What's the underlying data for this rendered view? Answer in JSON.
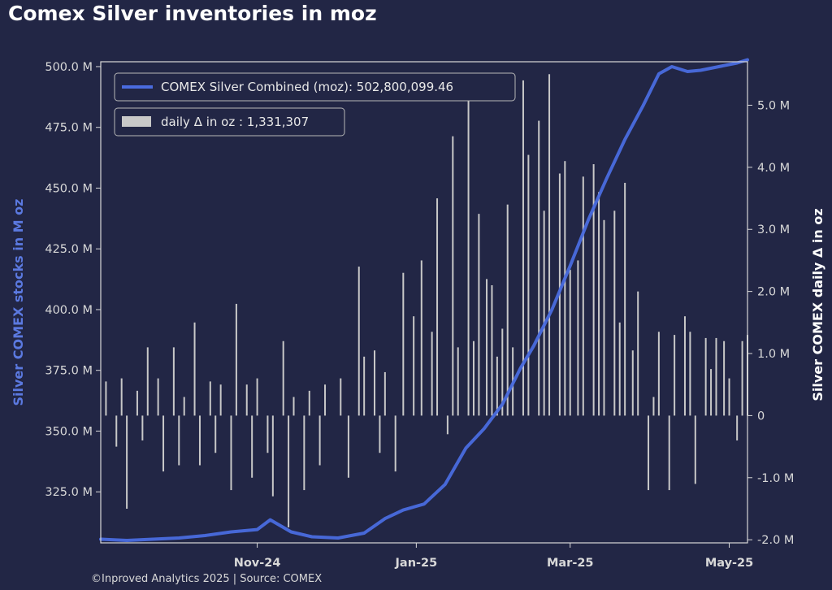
{
  "title": "Comex Silver inventories in moz",
  "credit": "©Inproved Analytics 2025 | Source: COMEX",
  "colors": {
    "background": "#222645",
    "line": "#4a6bdf",
    "bars": "#c8c8c8",
    "left_axis_label": "#5b79e0",
    "right_axis_label": "#ffffff"
  },
  "chart_data": {
    "type": "line",
    "title": "Comex Silver inventories in moz",
    "xlabel": "",
    "ylabel_left": "Silver COMEX stocks in M oz",
    "ylabel_right": "Silver COMEX daily Δ in oz",
    "x_ticks": [
      "Nov-24",
      "Jan-25",
      "Mar-25",
      "May-25"
    ],
    "x_tick_dates": [
      "2024-11-01",
      "2025-01-01",
      "2025-03-01",
      "2025-05-01"
    ],
    "x_range": [
      "2024-09-02",
      "2025-05-08"
    ],
    "y_left_range": [
      304,
      502
    ],
    "y_left_ticks": [
      325,
      350,
      375,
      400,
      425,
      450,
      475,
      500
    ],
    "y_left_tick_labels": [
      "325.0 M",
      "350.0 M",
      "375.0 M",
      "400.0 M",
      "425.0 M",
      "450.0 M",
      "475.0 M",
      "500.0 M"
    ],
    "y_right_range": [
      -2.05,
      5.7
    ],
    "y_right_ticks": [
      -2,
      -1,
      0,
      1,
      2,
      3,
      4,
      5
    ],
    "y_right_tick_labels": [
      "-2.0 M",
      "-1.0 M",
      "0",
      "1.0 M",
      "2.0 M",
      "3.0 M",
      "4.0 M",
      "5.0 M"
    ],
    "grid": false,
    "legend_position": "top-left",
    "series": [
      {
        "name": "COMEX Silver Combined (moz): 502,800,099.46",
        "type": "line",
        "axis": "left",
        "x": [
          "2024-09-02",
          "2024-09-12",
          "2024-09-22",
          "2024-10-02",
          "2024-10-12",
          "2024-10-22",
          "2024-11-01",
          "2024-11-06",
          "2024-11-14",
          "2024-11-22",
          "2024-12-02",
          "2024-12-12",
          "2024-12-20",
          "2024-12-27",
          "2025-01-04",
          "2025-01-12",
          "2025-01-20",
          "2025-01-27",
          "2025-02-03",
          "2025-02-10",
          "2025-02-15",
          "2025-02-22",
          "2025-03-01",
          "2025-03-08",
          "2025-03-15",
          "2025-03-22",
          "2025-03-29",
          "2025-04-04",
          "2025-04-09",
          "2025-04-15",
          "2025-04-20",
          "2025-04-27",
          "2025-05-04",
          "2025-05-08"
        ],
        "values": [
          305.5,
          305.0,
          305.5,
          306.0,
          307.0,
          308.5,
          309.5,
          313.5,
          308.5,
          306.5,
          306.0,
          308.0,
          314.0,
          317.5,
          320.0,
          328.0,
          343.0,
          351.0,
          361.0,
          376.0,
          385.0,
          400.0,
          418.0,
          437.0,
          454.0,
          470.0,
          484.0,
          497.0,
          500.0,
          498.0,
          498.5,
          500.0,
          501.5,
          502.8
        ]
      },
      {
        "name": "daily Δ in oz : 1,331,307",
        "type": "bar",
        "axis": "right",
        "units": "M oz",
        "x": [
          "2024-09-04",
          "2024-09-08",
          "2024-09-10",
          "2024-09-12",
          "2024-09-16",
          "2024-09-18",
          "2024-09-20",
          "2024-09-24",
          "2024-09-26",
          "2024-09-30",
          "2024-10-02",
          "2024-10-04",
          "2024-10-08",
          "2024-10-10",
          "2024-10-14",
          "2024-10-16",
          "2024-10-18",
          "2024-10-22",
          "2024-10-24",
          "2024-10-28",
          "2024-10-30",
          "2024-11-01",
          "2024-11-05",
          "2024-11-07",
          "2024-11-11",
          "2024-11-13",
          "2024-11-15",
          "2024-11-19",
          "2024-11-21",
          "2024-11-25",
          "2024-11-27",
          "2024-12-03",
          "2024-12-06",
          "2024-12-10",
          "2024-12-12",
          "2024-12-16",
          "2024-12-18",
          "2024-12-20",
          "2024-12-24",
          "2024-12-27",
          "2024-12-31",
          "2025-01-03",
          "2025-01-07",
          "2025-01-09",
          "2025-01-13",
          "2025-01-15",
          "2025-01-17",
          "2025-01-21",
          "2025-01-23",
          "2025-01-25",
          "2025-01-28",
          "2025-01-30",
          "2025-02-01",
          "2025-02-03",
          "2025-02-05",
          "2025-02-07",
          "2025-02-11",
          "2025-02-13",
          "2025-02-17",
          "2025-02-19",
          "2025-02-21",
          "2025-02-25",
          "2025-02-27",
          "2025-03-01",
          "2025-03-04",
          "2025-03-06",
          "2025-03-10",
          "2025-03-12",
          "2025-03-14",
          "2025-03-18",
          "2025-03-20",
          "2025-03-22",
          "2025-03-25",
          "2025-03-27",
          "2025-03-31",
          "2025-04-02",
          "2025-04-04",
          "2025-04-08",
          "2025-04-10",
          "2025-04-14",
          "2025-04-16",
          "2025-04-18",
          "2025-04-22",
          "2025-04-24",
          "2025-04-26",
          "2025-04-29",
          "2025-05-01",
          "2025-05-04",
          "2025-05-06",
          "2025-05-08"
        ],
        "values": [
          0.55,
          -0.5,
          0.6,
          -1.5,
          0.4,
          -0.4,
          1.1,
          0.6,
          -0.9,
          1.1,
          -0.8,
          0.3,
          1.5,
          -0.8,
          0.55,
          -0.6,
          0.5,
          -1.2,
          1.8,
          0.5,
          -1.0,
          0.6,
          -0.6,
          -1.3,
          1.2,
          -1.8,
          0.3,
          -1.2,
          0.4,
          -0.8,
          0.5,
          0.6,
          -1.0,
          2.4,
          0.95,
          1.05,
          -0.6,
          0.7,
          -0.9,
          2.3,
          1.6,
          2.5,
          1.35,
          3.5,
          -0.3,
          4.5,
          1.1,
          5.3,
          1.2,
          3.25,
          2.2,
          2.1,
          0.95,
          1.4,
          3.4,
          1.1,
          5.4,
          4.2,
          4.75,
          3.3,
          5.5,
          3.9,
          4.1,
          2.35,
          2.5,
          3.85,
          4.05,
          3.6,
          3.15,
          3.3,
          1.5,
          3.75,
          1.05,
          2.0,
          -1.2,
          0.3,
          1.35,
          -1.2,
          1.3,
          1.6,
          1.35,
          -1.1,
          1.25,
          0.75,
          1.25,
          1.2,
          0.6,
          -0.4,
          1.2,
          1.3
        ]
      }
    ]
  }
}
